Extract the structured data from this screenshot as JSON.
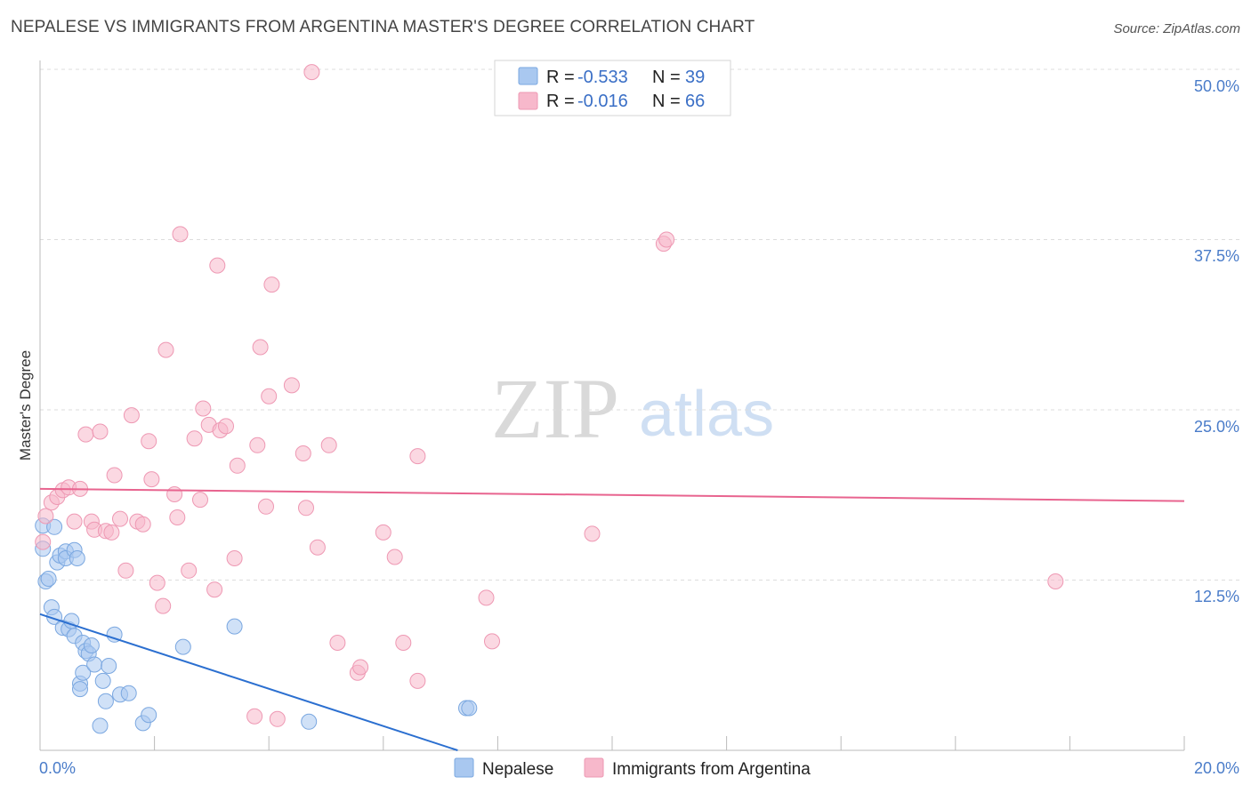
{
  "title": "NEPALESE VS IMMIGRANTS FROM ARGENTINA MASTER'S DEGREE CORRELATION CHART",
  "source": "Source: ZipAtlas.com",
  "watermark": {
    "zip": "ZIP",
    "atlas": "atlas"
  },
  "colors": {
    "blue_fill": "#a9c8f0",
    "blue_stroke": "#7aa7e0",
    "blue_line": "#2b6fd0",
    "pink_fill": "#f7b8cb",
    "pink_stroke": "#ee98b3",
    "pink_line": "#e8648f",
    "tick_text": "#4a7cc9",
    "grid": "#dddddd"
  },
  "chart_data": {
    "type": "scatter",
    "xlabel": "",
    "ylabel": "Master's Degree",
    "xlim": [
      0,
      20
    ],
    "ylim": [
      0,
      50
    ],
    "x_tick_labels": [
      "0.0%",
      "20.0%"
    ],
    "y_ticks": [
      {
        "value": 12.5,
        "label": "12.5%"
      },
      {
        "value": 25.0,
        "label": "25.0%"
      },
      {
        "value": 37.5,
        "label": "37.5%"
      },
      {
        "value": 50.0,
        "label": "50.0%"
      }
    ],
    "legend": [
      {
        "series": "Nepalese",
        "r_label": "R = ",
        "r_value": "-0.533",
        "n_label": "N = ",
        "n_value": "39"
      },
      {
        "series": "Immigrants from Argentina",
        "r_label": "R = ",
        "r_value": "-0.016",
        "n_label": "N = ",
        "n_value": "66"
      }
    ],
    "series": [
      {
        "name": "Nepalese",
        "color": "blue",
        "trend": {
          "x1": 0,
          "y1": 10.0,
          "x2": 7.3,
          "y2": 0
        },
        "points": [
          [
            0.05,
            16.5
          ],
          [
            0.05,
            14.8
          ],
          [
            0.1,
            12.4
          ],
          [
            0.15,
            12.6
          ],
          [
            0.2,
            10.5
          ],
          [
            0.25,
            9.8
          ],
          [
            0.25,
            16.4
          ],
          [
            0.3,
            13.8
          ],
          [
            0.35,
            14.3
          ],
          [
            0.4,
            9.0
          ],
          [
            0.45,
            14.6
          ],
          [
            0.45,
            14.1
          ],
          [
            0.5,
            8.9
          ],
          [
            0.55,
            9.5
          ],
          [
            0.6,
            14.7
          ],
          [
            0.6,
            8.4
          ],
          [
            0.65,
            14.1
          ],
          [
            0.7,
            4.9
          ],
          [
            0.7,
            4.5
          ],
          [
            0.75,
            7.9
          ],
          [
            0.75,
            5.7
          ],
          [
            0.8,
            7.3
          ],
          [
            0.85,
            7.1
          ],
          [
            0.9,
            7.7
          ],
          [
            0.95,
            6.3
          ],
          [
            1.05,
            1.8
          ],
          [
            1.1,
            5.1
          ],
          [
            1.15,
            3.6
          ],
          [
            1.2,
            6.2
          ],
          [
            1.3,
            8.5
          ],
          [
            1.4,
            4.1
          ],
          [
            1.55,
            4.2
          ],
          [
            1.8,
            2.0
          ],
          [
            1.9,
            2.6
          ],
          [
            2.5,
            7.6
          ],
          [
            3.4,
            9.1
          ],
          [
            4.7,
            2.1
          ],
          [
            7.45,
            3.1
          ],
          [
            7.5,
            3.1
          ]
        ]
      },
      {
        "name": "Immigrants from Argentina",
        "color": "pink",
        "trend": {
          "x1": 0,
          "y1": 19.2,
          "x2": 20,
          "y2": 18.3
        },
        "points": [
          [
            0.05,
            15.3
          ],
          [
            0.1,
            17.2
          ],
          [
            0.2,
            18.2
          ],
          [
            0.3,
            18.6
          ],
          [
            0.4,
            19.1
          ],
          [
            0.5,
            19.3
          ],
          [
            0.6,
            16.8
          ],
          [
            0.7,
            19.2
          ],
          [
            0.8,
            23.2
          ],
          [
            0.9,
            16.8
          ],
          [
            0.95,
            16.2
          ],
          [
            1.05,
            23.4
          ],
          [
            1.15,
            16.1
          ],
          [
            1.25,
            16.0
          ],
          [
            1.3,
            20.2
          ],
          [
            1.4,
            17.0
          ],
          [
            1.5,
            13.2
          ],
          [
            1.6,
            24.6
          ],
          [
            1.7,
            16.8
          ],
          [
            1.8,
            16.6
          ],
          [
            1.9,
            22.7
          ],
          [
            1.95,
            19.9
          ],
          [
            2.05,
            12.3
          ],
          [
            2.15,
            10.6
          ],
          [
            2.2,
            29.4
          ],
          [
            2.35,
            18.8
          ],
          [
            2.4,
            17.1
          ],
          [
            2.45,
            37.9
          ],
          [
            2.6,
            13.2
          ],
          [
            2.7,
            22.9
          ],
          [
            2.8,
            18.4
          ],
          [
            2.85,
            25.1
          ],
          [
            2.95,
            23.9
          ],
          [
            3.05,
            11.8
          ],
          [
            3.1,
            35.6
          ],
          [
            3.15,
            23.5
          ],
          [
            3.25,
            23.8
          ],
          [
            3.4,
            14.1
          ],
          [
            3.45,
            20.9
          ],
          [
            3.75,
            2.5
          ],
          [
            3.8,
            22.4
          ],
          [
            3.85,
            29.6
          ],
          [
            3.95,
            17.9
          ],
          [
            4.0,
            26.0
          ],
          [
            4.05,
            34.2
          ],
          [
            4.15,
            2.3
          ],
          [
            4.4,
            26.8
          ],
          [
            4.6,
            21.8
          ],
          [
            4.65,
            17.8
          ],
          [
            4.75,
            49.8
          ],
          [
            4.85,
            14.9
          ],
          [
            5.05,
            22.4
          ],
          [
            5.2,
            7.9
          ],
          [
            5.55,
            5.7
          ],
          [
            5.6,
            6.1
          ],
          [
            6.0,
            16.0
          ],
          [
            6.2,
            14.2
          ],
          [
            6.35,
            7.9
          ],
          [
            6.6,
            5.1
          ],
          [
            6.6,
            21.6
          ],
          [
            7.8,
            11.2
          ],
          [
            7.9,
            8.0
          ],
          [
            9.65,
            15.9
          ],
          [
            10.9,
            37.2
          ],
          [
            10.95,
            37.5
          ],
          [
            17.75,
            12.4
          ]
        ]
      }
    ]
  }
}
